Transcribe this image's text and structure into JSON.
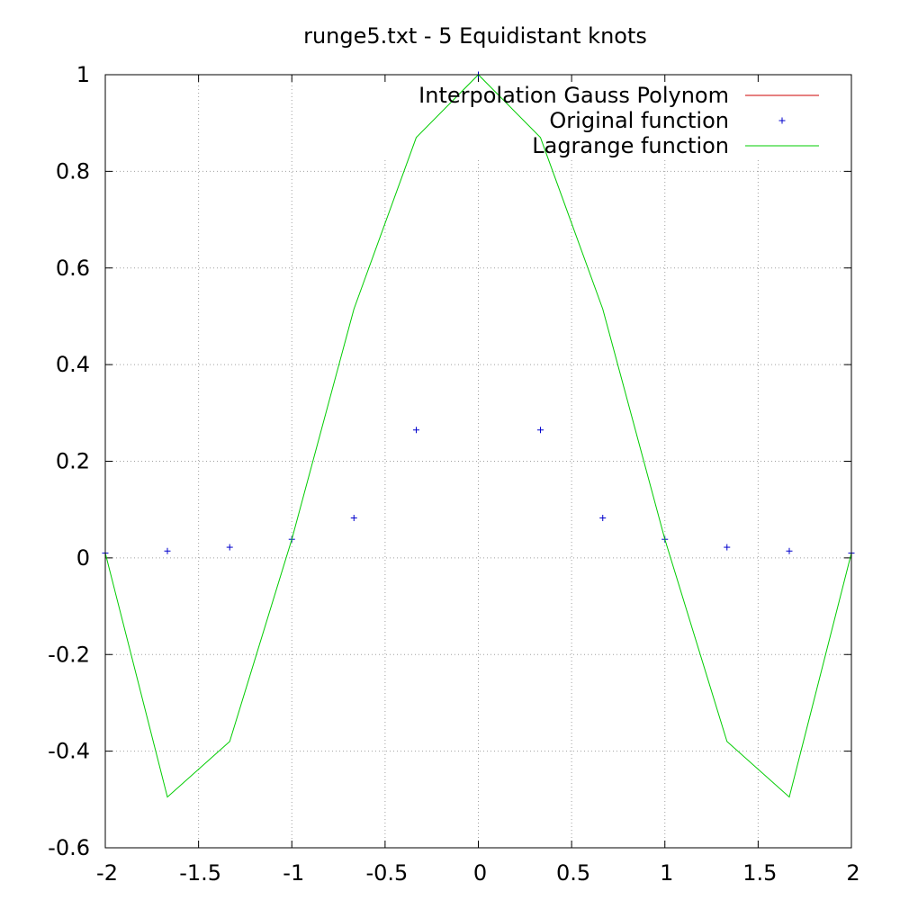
{
  "chart_data": {
    "type": "line",
    "title": "runge5.txt - 5 Equidistant knots",
    "xlabel": "",
    "ylabel": "",
    "xlim": [
      -2,
      2
    ],
    "ylim": [
      -0.6,
      1
    ],
    "grid": true,
    "legend_position": "top-right",
    "x_ticks": [
      -2,
      -1.5,
      -1,
      -0.5,
      0,
      0.5,
      1,
      1.5,
      2
    ],
    "x_tick_labels": [
      "-2",
      "-1.5",
      "-1",
      "-0.5",
      "0",
      "0.5",
      "1",
      "1.5",
      "2"
    ],
    "y_ticks": [
      -0.6,
      -0.4,
      -0.2,
      0,
      0.2,
      0.4,
      0.6,
      0.8,
      1
    ],
    "y_tick_labels": [
      "-0.6",
      "-0.4",
      "-0.2",
      "0",
      "0.2",
      "0.4",
      "0.6",
      "0.8",
      "1"
    ],
    "series": [
      {
        "name": "Interpolation Gauss Polynom",
        "kind": "line",
        "color": "#cc0000",
        "x": [],
        "y": []
      },
      {
        "name": "Original function",
        "kind": "points",
        "marker": "+",
        "color": "#0000cc",
        "x": [
          -2,
          -1.667,
          -1.333,
          -1,
          -0.667,
          -0.333,
          0,
          0.333,
          0.667,
          1,
          1.333,
          1.667,
          2
        ],
        "y": [
          0.0099,
          0.0142,
          0.022,
          0.0385,
          0.0826,
          0.2647,
          1,
          0.2647,
          0.0826,
          0.0385,
          0.022,
          0.0142,
          0.0099
        ]
      },
      {
        "name": "Lagrange function",
        "kind": "line",
        "color": "#00cc00",
        "x": [
          -2,
          -1.667,
          -1.333,
          -1,
          -0.667,
          -0.333,
          0,
          0.333,
          0.667,
          1,
          1.333,
          1.667,
          2
        ],
        "y": [
          0.0099,
          -0.495,
          -0.38,
          0.0385,
          0.515,
          0.87,
          1,
          0.87,
          0.515,
          0.0385,
          -0.38,
          -0.495,
          0.0099
        ]
      }
    ]
  }
}
